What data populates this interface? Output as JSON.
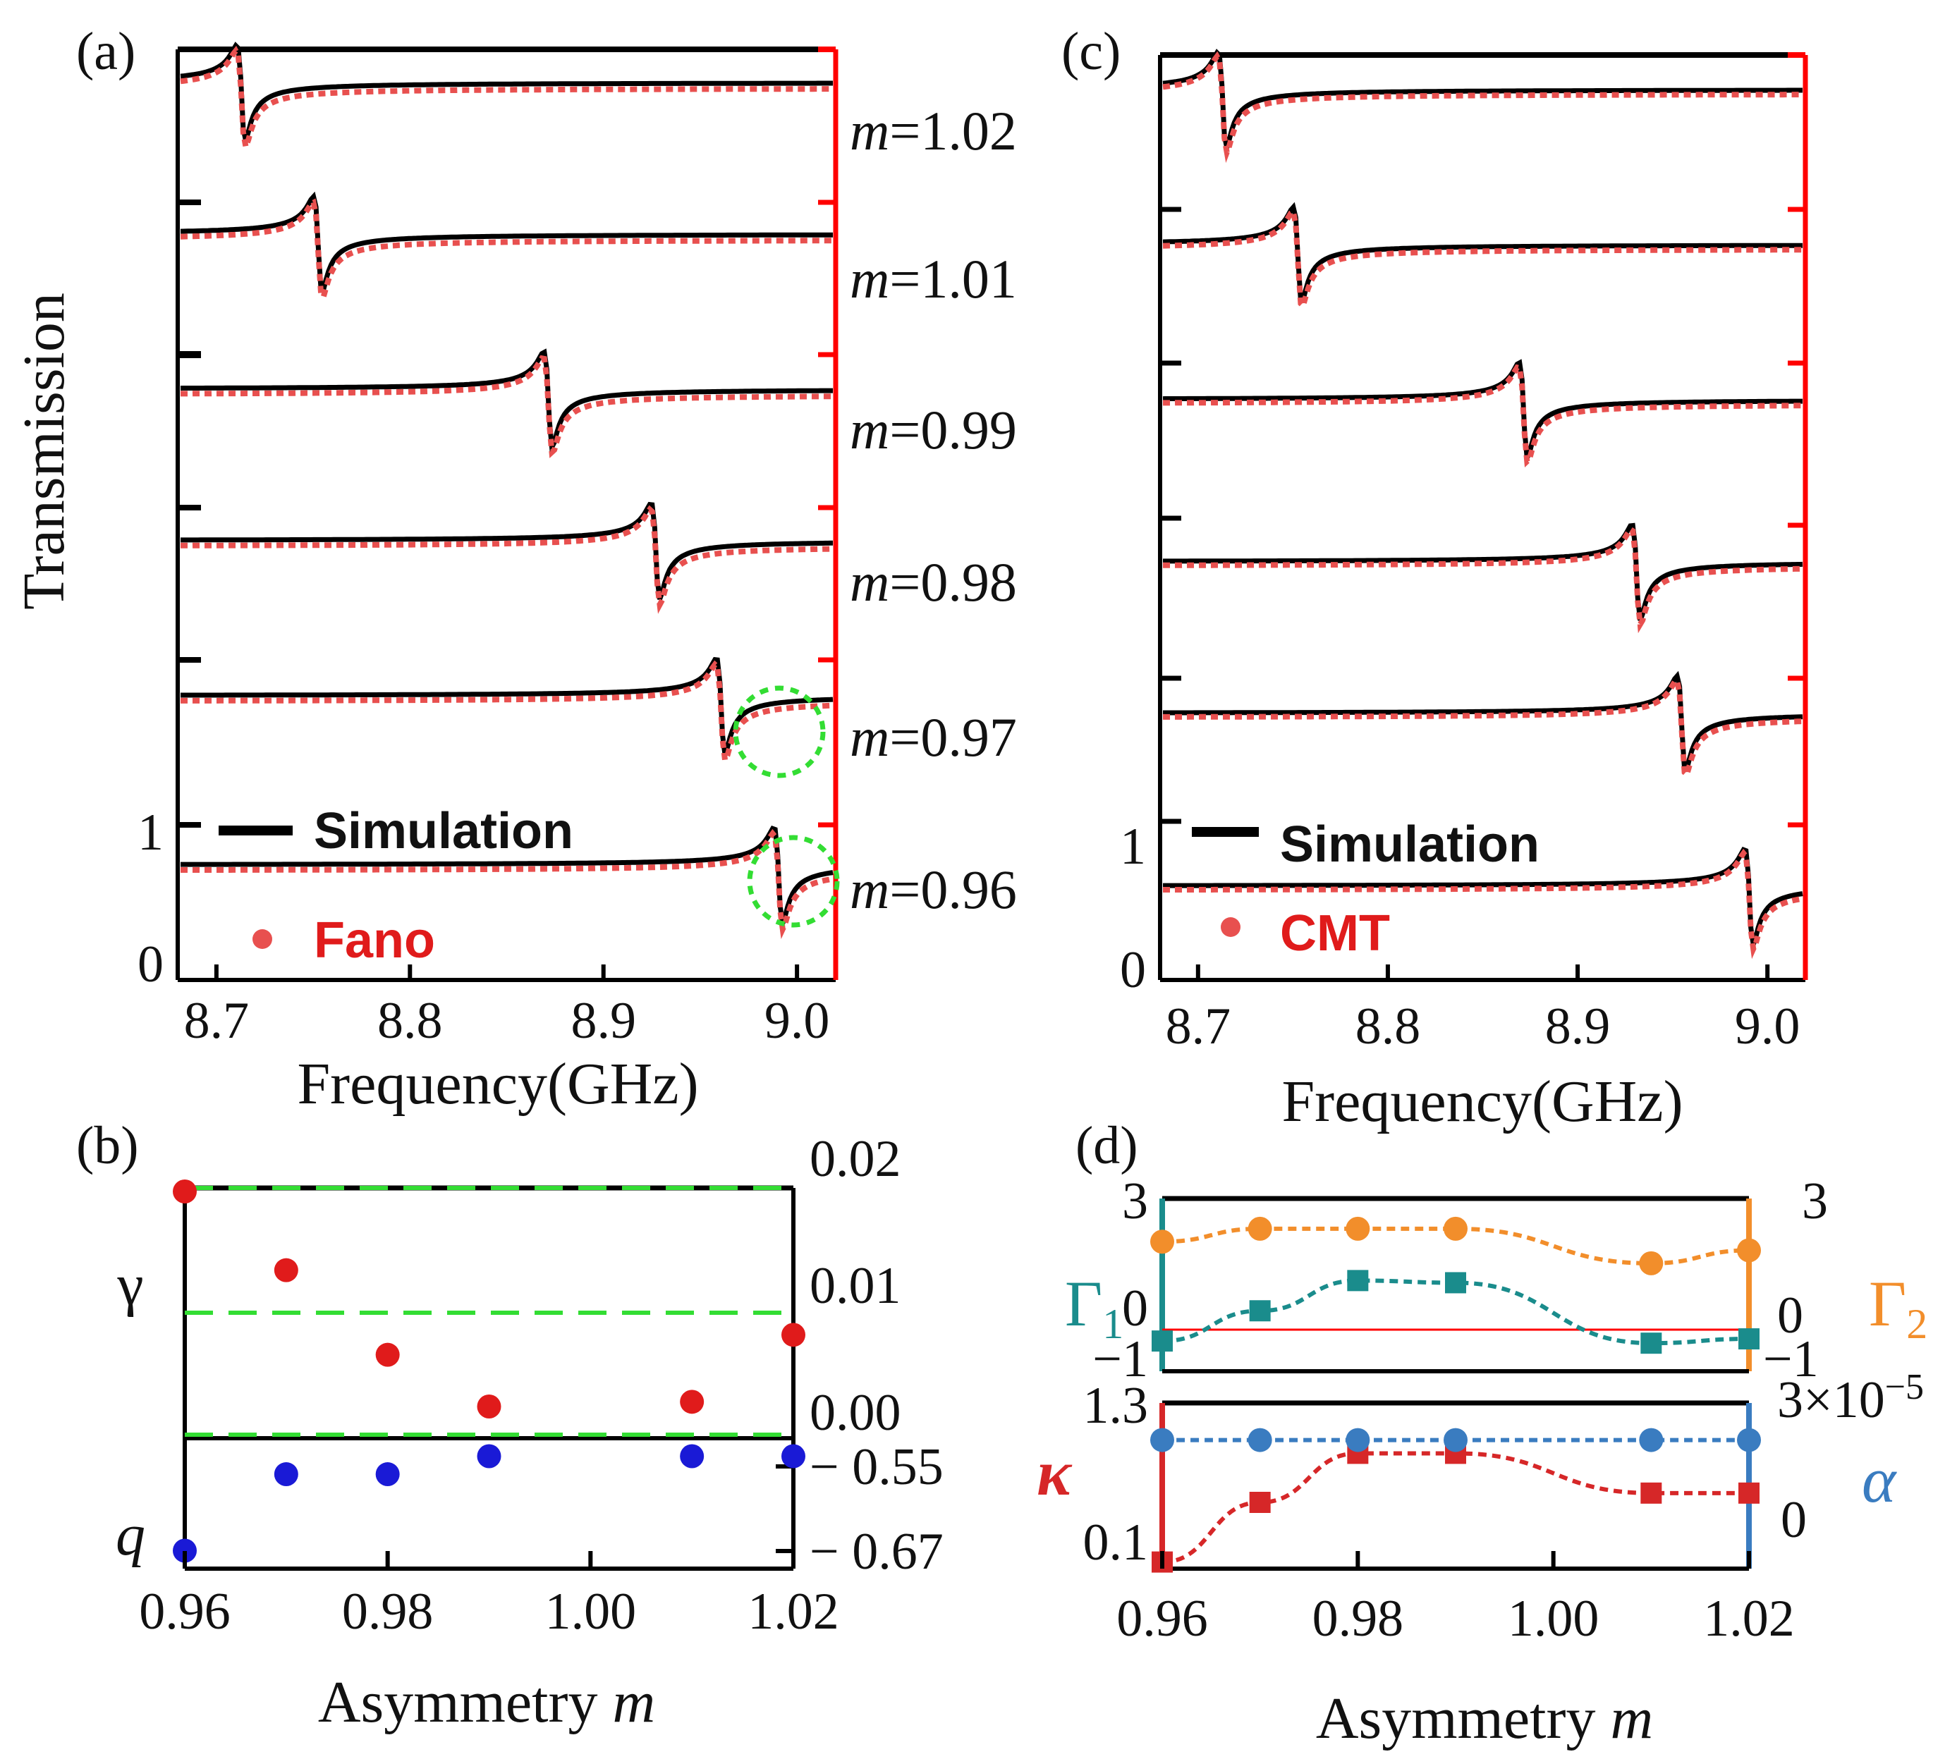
{
  "colors": {
    "simulation": "#000000",
    "fit": "#e8504f",
    "right_axis": "#ff0000",
    "highlight": "#33dd33",
    "gamma": "#e01b1b",
    "q": "#1a1ad6",
    "gamma1": "#1a8c8c",
    "gamma2": "#f28e2b",
    "kappa": "#d62728",
    "alpha": "#3a7cc0"
  },
  "panels": {
    "a": {
      "label": "(a)",
      "legend_sim": "Simulation",
      "legend_fit": "Fano",
      "ytick_one": "1",
      "ytick_zero": "0",
      "xlabel": "Frequency(GHz)",
      "ylabel": "Transmission",
      "xticks": [
        "8.7",
        "8.8",
        "8.9",
        "9.0"
      ]
    },
    "c": {
      "label": "(c)",
      "legend_sim": "Simulation",
      "legend_fit": "CMT",
      "ytick_one": "1",
      "ytick_zero": "0",
      "xlabel": "Frequency(GHz)",
      "xticks": [
        "8.7",
        "8.8",
        "8.9",
        "9.0"
      ]
    },
    "b": {
      "label": "(b)",
      "xlabel_main": "Asymmetry ",
      "xlabel_var": "m",
      "xticks": [
        "0.96",
        "0.98",
        "1.00",
        "1.02"
      ],
      "gamma_label": "γ",
      "q_label": "q",
      "gamma_ticks": [
        "0.02",
        "0.01",
        "0.00"
      ],
      "q_ticks": [
        "− 0.55",
        "− 0.67"
      ]
    },
    "d": {
      "label": "(d)",
      "xlabel_main": "Asymmetry ",
      "xlabel_var": "m",
      "xticks": [
        "0.96",
        "0.98",
        "1.00",
        "1.02"
      ],
      "g1_label": "Γ",
      "g1_sub": "1",
      "g2_label": "Γ",
      "g2_sub": "2",
      "kappa_label": "κ",
      "alpha_label": "α",
      "top_left_ticks": [
        "3",
        "0",
        "−1"
      ],
      "top_right_ticks": [
        "3",
        "0",
        "−1"
      ],
      "bottom_left_ticks": [
        "1.3",
        "0.1"
      ],
      "bottom_right_ticks": [
        "3×10",
        "−5",
        "0"
      ]
    }
  },
  "chart_data": [
    {
      "panel": "a",
      "type": "line",
      "title": "",
      "xlabel": "Frequency(GHz)",
      "ylabel": "Transmission",
      "xlim": [
        8.68,
        9.02
      ],
      "ylim_per_trace": [
        0,
        1
      ],
      "legend": [
        "Simulation",
        "Fano"
      ],
      "series": [
        {
          "m": "1.02",
          "label": "m=1.02",
          "resonance_ghz": 8.712,
          "baseline": 0.78,
          "highlight": false
        },
        {
          "m": "1.01",
          "label": "m=1.01",
          "resonance_ghz": 8.752,
          "baseline": 0.78,
          "highlight": false
        },
        {
          "m": "0.99",
          "label": "m=0.99",
          "resonance_ghz": 8.872,
          "baseline": 0.78,
          "highlight": false
        },
        {
          "m": "0.98",
          "label": "m=0.98",
          "resonance_ghz": 8.928,
          "baseline": 0.78,
          "highlight": false
        },
        {
          "m": "0.97",
          "label": "m=0.97",
          "resonance_ghz": 8.962,
          "baseline": 0.78,
          "highlight": true
        },
        {
          "m": "0.96",
          "label": "m=0.96",
          "resonance_ghz": 8.992,
          "baseline": 0.78,
          "highlight": true
        }
      ]
    },
    {
      "panel": "c",
      "type": "line",
      "title": "",
      "xlabel": "Frequency(GHz)",
      "xlim": [
        8.68,
        9.02
      ],
      "ylim_per_trace": [
        0,
        1
      ],
      "legend": [
        "Simulation",
        "CMT"
      ],
      "series": [
        {
          "m": "1.02",
          "resonance_ghz": 8.712,
          "baseline": 0.78
        },
        {
          "m": "1.01",
          "resonance_ghz": 8.752,
          "baseline": 0.78
        },
        {
          "m": "0.99",
          "resonance_ghz": 8.872,
          "baseline": 0.78
        },
        {
          "m": "0.98",
          "resonance_ghz": 8.932,
          "baseline": 0.78
        },
        {
          "m": "0.97",
          "resonance_ghz": 8.956,
          "baseline": 0.78
        },
        {
          "m": "0.96",
          "resonance_ghz": 8.992,
          "baseline": 0.78
        }
      ]
    },
    {
      "panel": "b",
      "type": "scatter",
      "xlabel": "Asymmetry m",
      "x": [
        0.96,
        0.97,
        0.98,
        0.99,
        1.01,
        1.02
      ],
      "xlim": [
        0.96,
        1.02
      ],
      "series": [
        {
          "name": "γ",
          "values": [
            0.0197,
            0.013,
            0.0058,
            0.0014,
            0.0018,
            0.0075
          ],
          "ylim": [
            -0.001,
            0.02
          ],
          "gridlines": [
            0.0,
            0.01,
            0.02
          ]
        },
        {
          "name": "q",
          "values": [
            -0.66,
            -0.575,
            -0.575,
            -0.555,
            -0.555,
            -0.555
          ],
          "ylim": [
            -0.68,
            -0.535
          ],
          "ticks": [
            -0.55,
            -0.67
          ]
        }
      ]
    },
    {
      "panel": "d",
      "type": "line",
      "xlabel": "Asymmetry m",
      "x": [
        0.96,
        0.97,
        0.98,
        0.99,
        1.01,
        1.02
      ],
      "xlim": [
        0.96,
        1.02
      ],
      "series": [
        {
          "name": "Γ1",
          "values": [
            -0.3,
            0.4,
            1.1,
            1.05,
            -0.35,
            -0.25
          ],
          "ylim": [
            -1,
            3
          ]
        },
        {
          "name": "Γ2",
          "values": [
            2.0,
            2.3,
            2.3,
            2.3,
            1.5,
            1.8
          ],
          "ylim": [
            -1,
            3
          ]
        },
        {
          "name": "κ",
          "values": [
            0.1,
            0.55,
            0.92,
            0.92,
            0.62,
            0.62
          ],
          "ylim": [
            0.05,
            1.3
          ]
        },
        {
          "name": "α",
          "values": [
            2.15e-05,
            2.15e-05,
            2.15e-05,
            2.15e-05,
            2.15e-05,
            2.15e-05
          ],
          "ylim": [
            -8e-06,
            3e-05
          ]
        }
      ]
    }
  ]
}
